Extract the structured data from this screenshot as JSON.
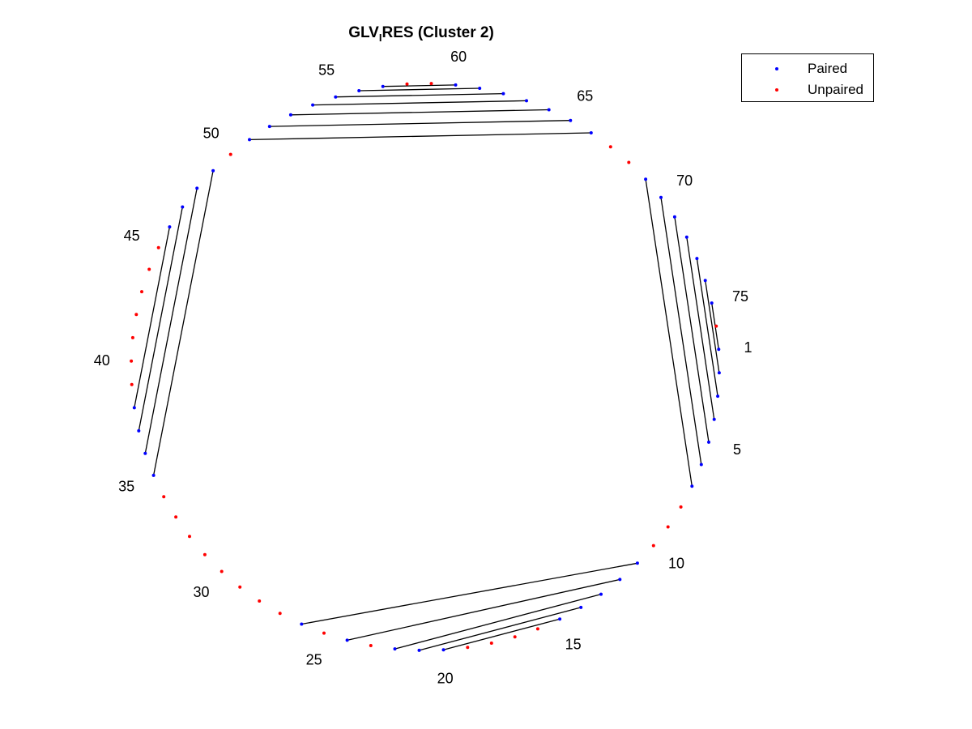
{
  "title": {
    "main": "GLV",
    "subscript": "I",
    "rest": "RES (Cluster 2)"
  },
  "legend": {
    "paired": {
      "label": "Paired",
      "color": "#0000ff"
    },
    "unpaired": {
      "label": "Unpaired",
      "color": "#ff0000"
    }
  },
  "diagram": {
    "n_nucleotides": 76,
    "tick_labels": [
      1,
      5,
      10,
      15,
      20,
      25,
      30,
      35,
      40,
      45,
      50,
      55,
      60,
      65,
      70,
      75
    ],
    "pairs": [
      [
        1,
        75
      ],
      [
        2,
        74
      ],
      [
        3,
        73
      ],
      [
        4,
        72
      ],
      [
        5,
        71
      ],
      [
        6,
        70
      ],
      [
        7,
        69
      ],
      [
        11,
        26
      ],
      [
        12,
        24
      ],
      [
        13,
        22
      ],
      [
        14,
        21
      ],
      [
        15,
        20
      ],
      [
        35,
        49
      ],
      [
        36,
        48
      ],
      [
        37,
        47
      ],
      [
        38,
        46
      ],
      [
        51,
        66
      ],
      [
        52,
        65
      ],
      [
        53,
        64
      ],
      [
        54,
        63
      ],
      [
        55,
        62
      ],
      [
        56,
        61
      ],
      [
        57,
        60
      ]
    ]
  }
}
